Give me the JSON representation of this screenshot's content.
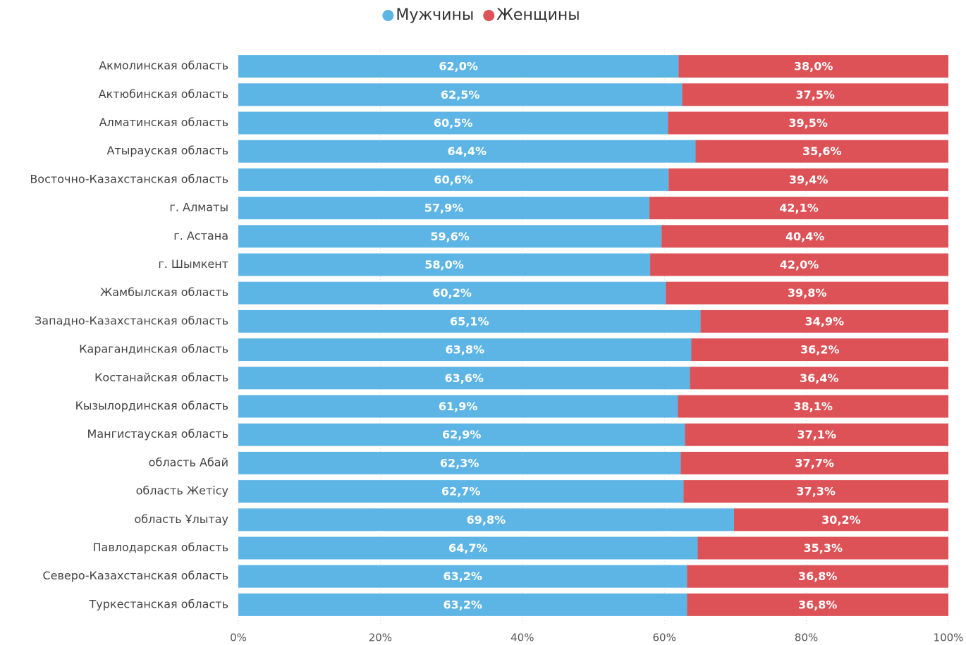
{
  "chart_data": {
    "type": "bar",
    "stacked": true,
    "legend": "top",
    "grid": true,
    "categories": [
      "Акмолинская область",
      "Актюбинская область",
      "Алматинская область",
      "Атырауская область",
      "Восточно-Казахстанская область",
      "г. Алматы",
      "г. Астана",
      "г. Шымкент",
      "Жамбылская область",
      "Западно-Казахстанская область",
      "Карагандинская область",
      "Костанайская область",
      "Кызылординская область",
      "Мангистауская область",
      "область Абай",
      "область Жетісу",
      "область Ұлытау",
      "Павлодарская область",
      "Северо-Казахстанская область",
      "Туркестанская область"
    ],
    "series": [
      {
        "name": "Мужчины",
        "color": "#5DB5E5",
        "values": [
          62.0,
          62.5,
          60.5,
          64.4,
          60.6,
          57.9,
          59.6,
          58.0,
          60.2,
          65.1,
          63.8,
          63.6,
          61.9,
          62.9,
          62.3,
          62.7,
          69.8,
          64.7,
          63.2,
          63.2
        ],
        "value_labels": [
          "62,0%",
          "62,5%",
          "60,5%",
          "64,4%",
          "60,6%",
          "57,9%",
          "59,6%",
          "58,0%",
          "60,2%",
          "65,1%",
          "63,8%",
          "63,6%",
          "61,9%",
          "62,9%",
          "62,3%",
          "62,7%",
          "69,8%",
          "64,7%",
          "63,2%",
          "63,2%"
        ]
      },
      {
        "name": "Женщины",
        "color": "#DD5256",
        "values": [
          38.0,
          37.5,
          39.5,
          35.6,
          39.4,
          42.1,
          40.4,
          42.0,
          39.8,
          34.9,
          36.2,
          36.4,
          38.1,
          37.1,
          37.7,
          37.3,
          30.2,
          35.3,
          36.8,
          36.8
        ],
        "value_labels": [
          "38,0%",
          "37,5%",
          "39,5%",
          "35,6%",
          "39,4%",
          "42,1%",
          "40,4%",
          "42,0%",
          "39,8%",
          "34,9%",
          "36,2%",
          "36,4%",
          "38,1%",
          "37,1%",
          "37,7%",
          "37,3%",
          "30,2%",
          "35,3%",
          "36,8%",
          "36,8%"
        ]
      }
    ],
    "xlim": [
      0,
      100
    ],
    "xticks": [
      {
        "value": 0,
        "label": "0%"
      },
      {
        "value": 20,
        "label": "20%"
      },
      {
        "value": 40,
        "label": "40%"
      },
      {
        "value": 60,
        "label": "60%"
      },
      {
        "value": 80,
        "label": "80%"
      },
      {
        "value": 100,
        "label": "100%"
      }
    ]
  }
}
